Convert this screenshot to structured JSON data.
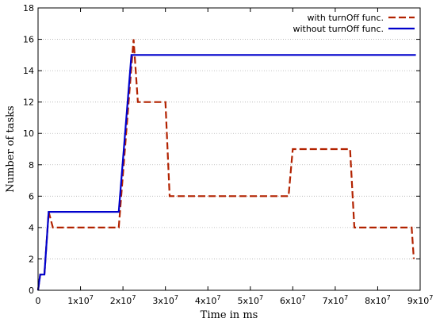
{
  "chart_data": {
    "type": "line",
    "xlabel": "Time in ms",
    "ylabel": "Number of tasks",
    "xlim": [
      0,
      90000000
    ],
    "ylim": [
      0,
      18
    ],
    "x_ticks": [
      {
        "value": 0,
        "label": "0"
      },
      {
        "value": 10000000,
        "label": "1x10",
        "exp": "7"
      },
      {
        "value": 20000000,
        "label": "2x10",
        "exp": "7"
      },
      {
        "value": 30000000,
        "label": "3x10",
        "exp": "7"
      },
      {
        "value": 40000000,
        "label": "4x10",
        "exp": "7"
      },
      {
        "value": 50000000,
        "label": "5x10",
        "exp": "7"
      },
      {
        "value": 60000000,
        "label": "6x10",
        "exp": "7"
      },
      {
        "value": 70000000,
        "label": "7x10",
        "exp": "7"
      },
      {
        "value": 80000000,
        "label": "8x10",
        "exp": "7"
      },
      {
        "value": 90000000,
        "label": "9x10",
        "exp": "7"
      }
    ],
    "y_ticks": [
      {
        "value": 0,
        "label": "0"
      },
      {
        "value": 2,
        "label": "2"
      },
      {
        "value": 4,
        "label": "4"
      },
      {
        "value": 6,
        "label": "6"
      },
      {
        "value": 8,
        "label": "8"
      },
      {
        "value": 10,
        "label": "10"
      },
      {
        "value": 12,
        "label": "12"
      },
      {
        "value": 14,
        "label": "14"
      },
      {
        "value": 16,
        "label": "16"
      },
      {
        "value": 18,
        "label": "18"
      }
    ],
    "grid": "horizontal dotted",
    "legend_position": "top-right",
    "series": [
      {
        "name": "with turnOff func.",
        "color": "#b22200",
        "style": "dashed",
        "points": [
          [
            0,
            0
          ],
          [
            500000,
            1
          ],
          [
            1500000,
            1
          ],
          [
            2500000,
            5
          ],
          [
            3500000,
            4
          ],
          [
            19000000,
            4
          ],
          [
            22500000,
            16
          ],
          [
            23500000,
            12
          ],
          [
            30000000,
            12
          ],
          [
            31000000,
            6
          ],
          [
            59000000,
            6
          ],
          [
            60000000,
            9
          ],
          [
            73500000,
            9
          ],
          [
            74500000,
            4
          ],
          [
            88000000,
            4
          ],
          [
            88500000,
            2
          ]
        ]
      },
      {
        "name": "without turnOff func.",
        "color": "#0000cc",
        "style": "solid",
        "points": [
          [
            0,
            0
          ],
          [
            500000,
            1
          ],
          [
            1500000,
            1
          ],
          [
            2500000,
            5
          ],
          [
            19000000,
            5
          ],
          [
            22000000,
            15
          ],
          [
            89000000,
            15
          ]
        ]
      }
    ]
  }
}
